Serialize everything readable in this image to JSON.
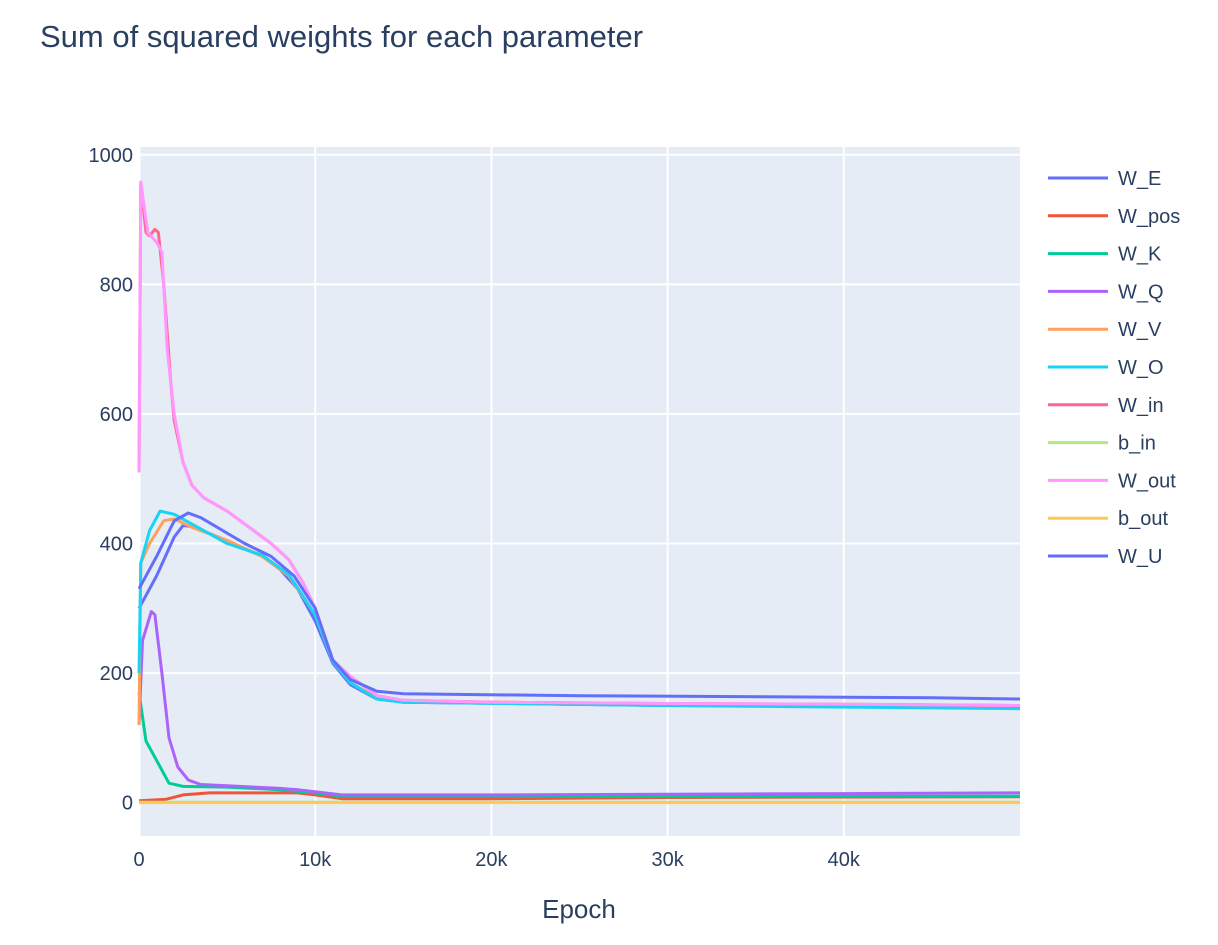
{
  "chart_data": {
    "type": "line",
    "title": "Sum of squared weights for each parameter",
    "xlabel": "Epoch",
    "ylabel": "",
    "xlim": [
      0,
      50000
    ],
    "ylim": [
      -51.5,
      1012
    ],
    "grid": true,
    "legend_position": "right",
    "x_ticks": [
      {
        "v": 0,
        "label": "0"
      },
      {
        "v": 10000,
        "label": "10k"
      },
      {
        "v": 20000,
        "label": "20k"
      },
      {
        "v": 30000,
        "label": "30k"
      },
      {
        "v": 40000,
        "label": "40k"
      }
    ],
    "y_ticks": [
      {
        "v": 0,
        "label": "0"
      },
      {
        "v": 200,
        "label": "200"
      },
      {
        "v": 400,
        "label": "400"
      },
      {
        "v": 600,
        "label": "600"
      },
      {
        "v": 800,
        "label": "800"
      },
      {
        "v": 1000,
        "label": "1000"
      }
    ],
    "series": [
      {
        "name": "W_E",
        "color": "#636efa",
        "points": [
          [
            0,
            300
          ],
          [
            1000,
            350
          ],
          [
            2000,
            410
          ],
          [
            2500,
            428
          ],
          [
            3000,
            426
          ],
          [
            4500,
            410
          ],
          [
            7000,
            380
          ],
          [
            8000,
            360
          ],
          [
            9000,
            330
          ],
          [
            10000,
            280
          ],
          [
            11000,
            215
          ],
          [
            12000,
            182
          ],
          [
            13500,
            160
          ],
          [
            15000,
            155
          ],
          [
            30000,
            150
          ],
          [
            50000,
            147
          ]
        ]
      },
      {
        "name": "W_pos",
        "color": "#EF553B",
        "points": [
          [
            0,
            3
          ],
          [
            1500,
            5
          ],
          [
            2500,
            12
          ],
          [
            4000,
            15
          ],
          [
            9000,
            15
          ],
          [
            10000,
            12
          ],
          [
            11500,
            6
          ],
          [
            20000,
            6
          ],
          [
            30000,
            8
          ],
          [
            50000,
            9
          ]
        ]
      },
      {
        "name": "W_K",
        "color": "#00cc96",
        "points": [
          [
            0,
            170
          ],
          [
            400,
            95
          ],
          [
            900,
            70
          ],
          [
            1700,
            30
          ],
          [
            2500,
            25
          ],
          [
            5000,
            24
          ],
          [
            8000,
            20
          ],
          [
            10000,
            15
          ],
          [
            11500,
            10
          ],
          [
            50000,
            10
          ]
        ]
      },
      {
        "name": "W_Q",
        "color": "#ab63fa",
        "points": [
          [
            0,
            120
          ],
          [
            200,
            250
          ],
          [
            700,
            295
          ],
          [
            900,
            290
          ],
          [
            1300,
            200
          ],
          [
            1700,
            100
          ],
          [
            2200,
            55
          ],
          [
            2800,
            35
          ],
          [
            3500,
            28
          ],
          [
            5000,
            26
          ],
          [
            8000,
            22
          ],
          [
            9000,
            20
          ],
          [
            11500,
            12
          ],
          [
            20000,
            12
          ],
          [
            40000,
            14
          ],
          [
            50000,
            15
          ]
        ]
      },
      {
        "name": "W_V",
        "color": "#FFA15A",
        "points": [
          [
            0,
            120
          ],
          [
            100,
            370
          ],
          [
            600,
            400
          ],
          [
            1400,
            435
          ],
          [
            2000,
            438
          ],
          [
            3000,
            425
          ],
          [
            5000,
            405
          ],
          [
            7000,
            380
          ],
          [
            8500,
            350
          ],
          [
            10000,
            290
          ],
          [
            11000,
            218
          ],
          [
            12000,
            185
          ],
          [
            13500,
            162
          ],
          [
            15000,
            157
          ],
          [
            30000,
            152
          ],
          [
            50000,
            150
          ]
        ]
      },
      {
        "name": "W_O",
        "color": "#19d3f3",
        "points": [
          [
            0,
            200
          ],
          [
            100,
            370
          ],
          [
            600,
            420
          ],
          [
            1200,
            450
          ],
          [
            2000,
            445
          ],
          [
            3000,
            430
          ],
          [
            5000,
            400
          ],
          [
            7000,
            382
          ],
          [
            8500,
            352
          ],
          [
            10000,
            290
          ],
          [
            11000,
            218
          ],
          [
            12000,
            185
          ],
          [
            13500,
            160
          ],
          [
            15000,
            155
          ],
          [
            30000,
            150
          ],
          [
            50000,
            145
          ]
        ]
      },
      {
        "name": "W_in",
        "color": "#FF6692",
        "points": [
          [
            0,
            510
          ],
          [
            100,
            955
          ],
          [
            400,
            880
          ],
          [
            600,
            875
          ],
          [
            900,
            885
          ],
          [
            1100,
            880
          ],
          [
            1400,
            800
          ],
          [
            1800,
            650
          ],
          [
            2000,
            590
          ],
          [
            2500,
            525
          ],
          [
            3000,
            490
          ],
          [
            3700,
            470
          ],
          [
            5000,
            450
          ],
          [
            6500,
            420
          ],
          [
            7500,
            400
          ],
          [
            8500,
            375
          ],
          [
            9300,
            340
          ],
          [
            10000,
            300
          ],
          [
            11000,
            220
          ],
          [
            12000,
            195
          ],
          [
            13500,
            165
          ],
          [
            15000,
            158
          ],
          [
            20000,
            155
          ],
          [
            30000,
            153
          ],
          [
            40000,
            152
          ],
          [
            50000,
            150
          ]
        ]
      },
      {
        "name": "b_in",
        "color": "#B6E880",
        "points": [
          [
            0,
            0.5
          ],
          [
            50000,
            0.5
          ]
        ]
      },
      {
        "name": "W_out",
        "color": "#FF97FF",
        "points": [
          [
            0,
            510
          ],
          [
            100,
            958
          ],
          [
            500,
            880
          ],
          [
            1000,
            865
          ],
          [
            1300,
            850
          ],
          [
            1600,
            700
          ],
          [
            2000,
            600
          ],
          [
            2500,
            525
          ],
          [
            3000,
            490
          ],
          [
            3700,
            470
          ],
          [
            5000,
            450
          ],
          [
            6500,
            420
          ],
          [
            7500,
            400
          ],
          [
            8500,
            375
          ],
          [
            9300,
            340
          ],
          [
            10000,
            300
          ],
          [
            11000,
            220
          ],
          [
            12000,
            195
          ],
          [
            13500,
            165
          ],
          [
            15000,
            158
          ],
          [
            20000,
            155
          ],
          [
            30000,
            153
          ],
          [
            40000,
            152
          ],
          [
            50000,
            150
          ]
        ]
      },
      {
        "name": "b_out",
        "color": "#FECB52",
        "points": [
          [
            0,
            0
          ],
          [
            50000,
            0
          ]
        ]
      },
      {
        "name": "W_U",
        "color": "#636efa",
        "points": [
          [
            0,
            330
          ],
          [
            1000,
            380
          ],
          [
            2000,
            435
          ],
          [
            2800,
            447
          ],
          [
            3500,
            440
          ],
          [
            6000,
            400
          ],
          [
            7500,
            380
          ],
          [
            8800,
            350
          ],
          [
            10000,
            300
          ],
          [
            11000,
            220
          ],
          [
            12000,
            190
          ],
          [
            13500,
            172
          ],
          [
            15000,
            168
          ],
          [
            25000,
            165
          ],
          [
            45000,
            162
          ],
          [
            50000,
            160
          ]
        ]
      }
    ]
  }
}
